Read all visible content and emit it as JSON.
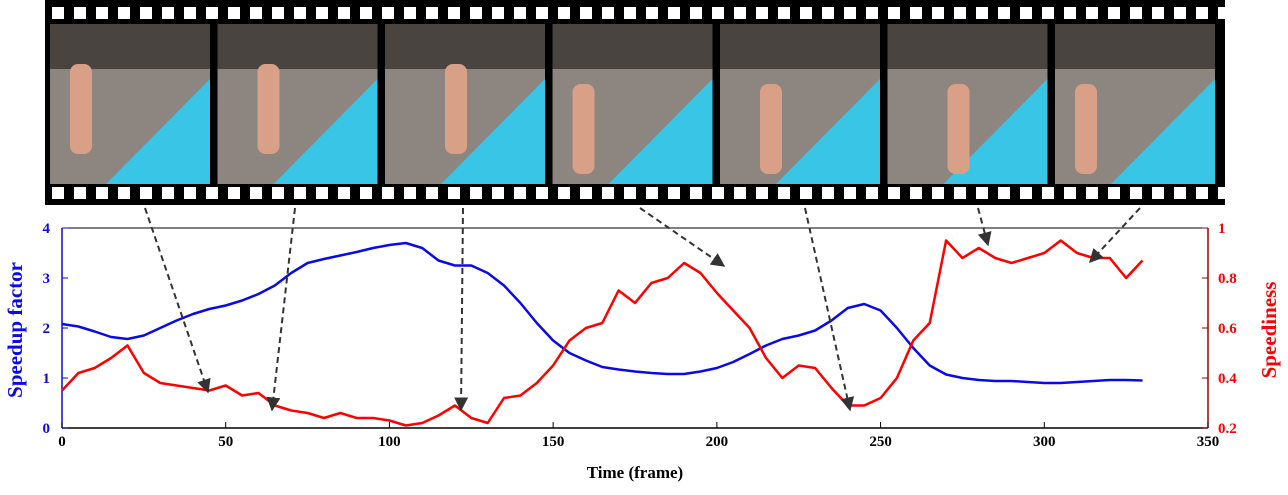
{
  "chart_data": {
    "type": "line",
    "xlabel": "Time (frame)",
    "ylabel": "Speedup factor",
    "y2label": "Speediness",
    "x": [
      0,
      5,
      10,
      15,
      20,
      25,
      30,
      35,
      40,
      45,
      50,
      55,
      60,
      65,
      70,
      75,
      80,
      85,
      90,
      95,
      100,
      105,
      110,
      115,
      120,
      125,
      130,
      135,
      140,
      145,
      150,
      155,
      160,
      165,
      170,
      175,
      180,
      185,
      190,
      195,
      200,
      205,
      210,
      215,
      220,
      225,
      230,
      235,
      240,
      245,
      250,
      255,
      260,
      265,
      270,
      275,
      280,
      285,
      290,
      295,
      300,
      305,
      310,
      315,
      320,
      325,
      330
    ],
    "series": [
      {
        "name": "Speedup factor",
        "color": "#0a0ae6",
        "axis": "y",
        "values": [
          2.08,
          2.03,
          1.93,
          1.82,
          1.78,
          1.85,
          2.0,
          2.15,
          2.28,
          2.38,
          2.45,
          2.55,
          2.68,
          2.85,
          3.1,
          3.3,
          3.38,
          3.45,
          3.52,
          3.6,
          3.66,
          3.7,
          3.6,
          3.35,
          3.25,
          3.25,
          3.1,
          2.85,
          2.5,
          2.1,
          1.75,
          1.5,
          1.35,
          1.22,
          1.17,
          1.13,
          1.1,
          1.08,
          1.08,
          1.13,
          1.2,
          1.32,
          1.48,
          1.65,
          1.78,
          1.85,
          1.95,
          2.15,
          2.4,
          2.48,
          2.35,
          2.0,
          1.6,
          1.25,
          1.07,
          1.0,
          0.96,
          0.94,
          0.94,
          0.92,
          0.9,
          0.9,
          0.92,
          0.94,
          0.96,
          0.96,
          0.95
        ]
      },
      {
        "name": "Speediness",
        "color": "#ff0000",
        "axis": "y2",
        "values": [
          0.35,
          0.42,
          0.44,
          0.48,
          0.53,
          0.42,
          0.38,
          0.37,
          0.36,
          0.35,
          0.37,
          0.33,
          0.34,
          0.29,
          0.27,
          0.26,
          0.24,
          0.26,
          0.24,
          0.24,
          0.23,
          0.21,
          0.22,
          0.25,
          0.29,
          0.24,
          0.22,
          0.32,
          0.33,
          0.38,
          0.45,
          0.55,
          0.6,
          0.62,
          0.75,
          0.7,
          0.78,
          0.8,
          0.86,
          0.82,
          0.74,
          0.67,
          0.6,
          0.48,
          0.4,
          0.45,
          0.44,
          0.36,
          0.29,
          0.29,
          0.32,
          0.4,
          0.55,
          0.62,
          0.95,
          0.88,
          0.92,
          0.88,
          0.86,
          0.88,
          0.9,
          0.95,
          0.9,
          0.88,
          0.88,
          0.8,
          0.87
        ]
      }
    ],
    "xlim": [
      0,
      350
    ],
    "xticks": [
      0,
      50,
      100,
      150,
      200,
      250,
      300,
      350
    ],
    "ylim": [
      0,
      4
    ],
    "yticks": [
      0,
      1,
      2,
      3,
      4
    ],
    "y2lim": [
      0.2,
      1
    ],
    "y2ticks": [
      0.2,
      0.4,
      0.6,
      0.8,
      1
    ]
  }
}
